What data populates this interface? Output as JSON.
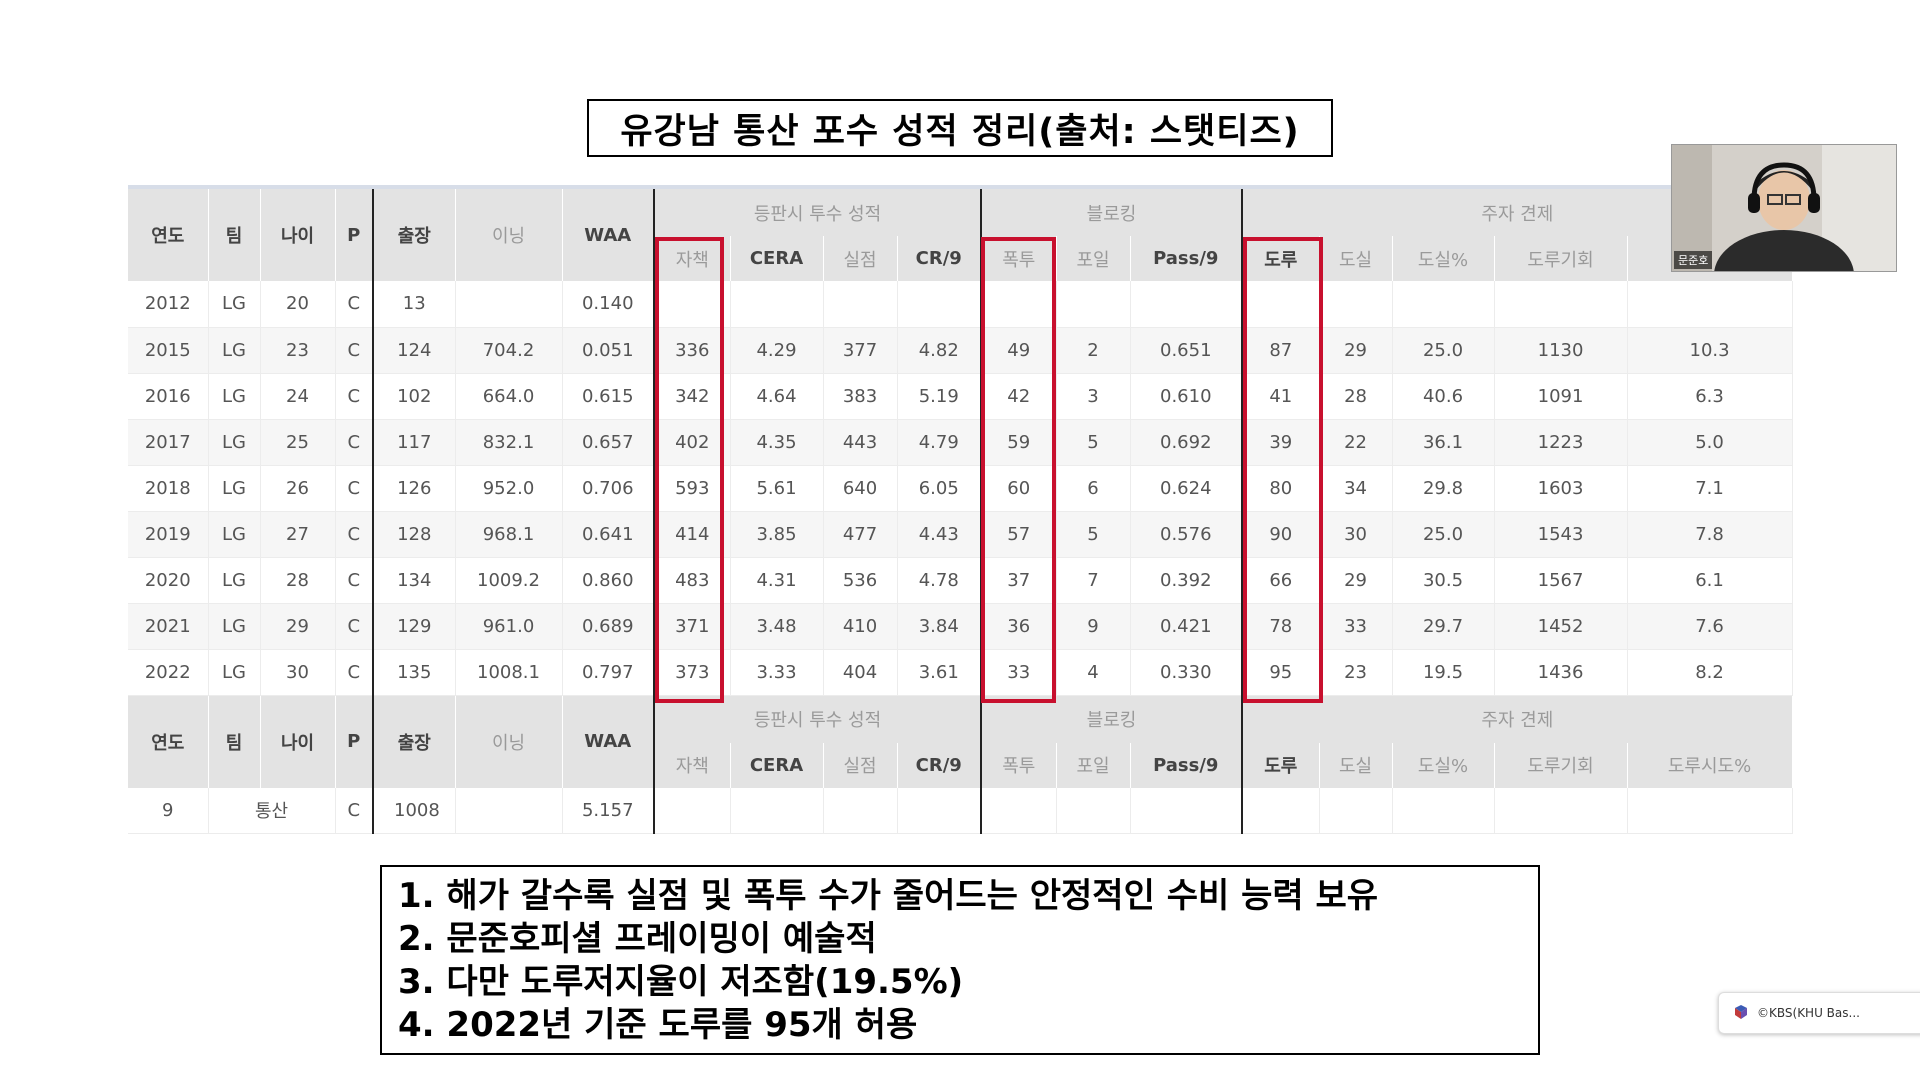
{
  "slide": {
    "title": "유강남 통산 포수 성적 정리(출처: 스탯티즈)"
  },
  "table": {
    "group_headers": {
      "pitching": "등판시 투수 성적",
      "blocking": "블로킹",
      "runner": "주자 견제"
    },
    "columns": [
      "연도",
      "팀",
      "나이",
      "P",
      "출장",
      "이닝",
      "WAA",
      "자책",
      "CERA",
      "실점",
      "CR/9",
      "폭투",
      "포일",
      "Pass/9",
      "도루",
      "도실",
      "도실%",
      "도루기회",
      "도루시도%"
    ],
    "rows": [
      [
        "2012",
        "LG",
        "20",
        "C",
        "13",
        "",
        "0.140",
        "",
        "",
        "",
        "",
        "",
        "",
        "",
        "",
        "",
        "",
        "",
        ""
      ],
      [
        "2015",
        "LG",
        "23",
        "C",
        "124",
        "704.2",
        "0.051",
        "336",
        "4.29",
        "377",
        "4.82",
        "49",
        "2",
        "0.651",
        "87",
        "29",
        "25.0",
        "1130",
        "10.3"
      ],
      [
        "2016",
        "LG",
        "24",
        "C",
        "102",
        "664.0",
        "0.615",
        "342",
        "4.64",
        "383",
        "5.19",
        "42",
        "3",
        "0.610",
        "41",
        "28",
        "40.6",
        "1091",
        "6.3"
      ],
      [
        "2017",
        "LG",
        "25",
        "C",
        "117",
        "832.1",
        "0.657",
        "402",
        "4.35",
        "443",
        "4.79",
        "59",
        "5",
        "0.692",
        "39",
        "22",
        "36.1",
        "1223",
        "5.0"
      ],
      [
        "2018",
        "LG",
        "26",
        "C",
        "126",
        "952.0",
        "0.706",
        "593",
        "5.61",
        "640",
        "6.05",
        "60",
        "6",
        "0.624",
        "80",
        "34",
        "29.8",
        "1603",
        "7.1"
      ],
      [
        "2019",
        "LG",
        "27",
        "C",
        "128",
        "968.1",
        "0.641",
        "414",
        "3.85",
        "477",
        "4.43",
        "57",
        "5",
        "0.576",
        "90",
        "30",
        "25.0",
        "1543",
        "7.8"
      ],
      [
        "2020",
        "LG",
        "28",
        "C",
        "134",
        "1009.2",
        "0.860",
        "483",
        "4.31",
        "536",
        "4.78",
        "37",
        "7",
        "0.392",
        "66",
        "29",
        "30.5",
        "1567",
        "6.1"
      ],
      [
        "2021",
        "LG",
        "29",
        "C",
        "129",
        "961.0",
        "0.689",
        "371",
        "3.48",
        "410",
        "3.84",
        "36",
        "9",
        "0.421",
        "78",
        "33",
        "29.7",
        "1452",
        "7.6"
      ],
      [
        "2022",
        "LG",
        "30",
        "C",
        "135",
        "1008.1",
        "0.797",
        "373",
        "3.33",
        "404",
        "3.61",
        "33",
        "4",
        "0.330",
        "95",
        "23",
        "19.5",
        "1436",
        "8.2"
      ]
    ],
    "total": {
      "years": "9",
      "label": "통산",
      "pos": "C",
      "games": "1008",
      "waa": "5.157"
    }
  },
  "notes": [
    "1.  해가 갈수록 실점 및 폭투 수가 줄어드는 안정적인 수비 능력 보유",
    "2.  문준호피셜 프레이밍이 예술적",
    "3.  다만 도루저지율이 저조함(19.5%)",
    "4.  2022년 기준 도루를 95개 허용"
  ],
  "webcam": {
    "name": "문준호"
  },
  "notification": {
    "text": "©KBS(KHU Bas..."
  },
  "colors": {
    "highlight": "#c8102e",
    "header_bg": "#e3e3e3"
  }
}
